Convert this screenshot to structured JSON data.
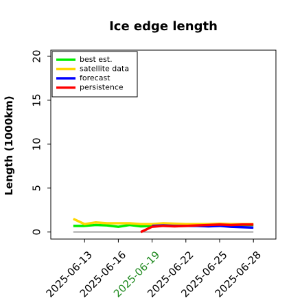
{
  "chart_data": {
    "type": "line",
    "title": "Ice edge length",
    "y_label": "Length (1000km)",
    "x": [
      "2025-06-12",
      "2025-06-13",
      "2025-06-14",
      "2025-06-15",
      "2025-06-16",
      "2025-06-17",
      "2025-06-18",
      "2025-06-19",
      "2025-06-20",
      "2025-06-21",
      "2025-06-22",
      "2025-06-23",
      "2025-06-24",
      "2025-06-25",
      "2025-06-26",
      "2025-06-27",
      "2025-06-28"
    ],
    "series": [
      {
        "name": "best est.",
        "color": "#00ee00",
        "values": [
          0.7,
          0.7,
          0.8,
          0.75,
          0.6,
          0.8,
          0.65,
          0.7,
          0.75,
          0.7,
          0.75,
          0.8,
          0.75,
          0.8,
          0.75,
          0.8,
          0.8
        ]
      },
      {
        "name": "satellite data",
        "color": "#ffd700",
        "values": [
          1.5,
          0.9,
          1.1,
          1.0,
          1.0,
          1.0,
          0.9,
          0.9,
          1.0,
          0.95,
          0.9,
          0.9,
          0.9,
          0.95,
          0.9,
          0.9,
          0.9
        ]
      },
      {
        "name": "forecast",
        "color": "#0000ff",
        "values": [
          null,
          null,
          null,
          null,
          null,
          null,
          null,
          0.7,
          0.75,
          0.7,
          0.7,
          0.7,
          0.65,
          0.7,
          0.6,
          0.55,
          0.5
        ]
      },
      {
        "name": "persistence",
        "color": "#ff0000",
        "values": [
          null,
          null,
          null,
          null,
          null,
          null,
          0.0,
          0.6,
          0.7,
          0.65,
          0.7,
          0.75,
          0.8,
          0.85,
          0.8,
          0.85,
          0.85
        ]
      }
    ],
    "xlim": [
      "2025-06-10",
      "2025-06-30"
    ],
    "xticks": [
      "2025-06-13",
      "2025-06-16",
      "2025-06-19",
      "2025-06-22",
      "2025-06-25",
      "2025-06-28"
    ],
    "xtick_colors": [
      "#000000",
      "#000000",
      "#228b22",
      "#000000",
      "#000000",
      "#000000"
    ],
    "ylim": [
      -0.8,
      20.7
    ],
    "yticks": [
      0,
      5,
      10,
      15,
      20
    ],
    "zero_line_color": "#888888",
    "legend": "upper left"
  }
}
